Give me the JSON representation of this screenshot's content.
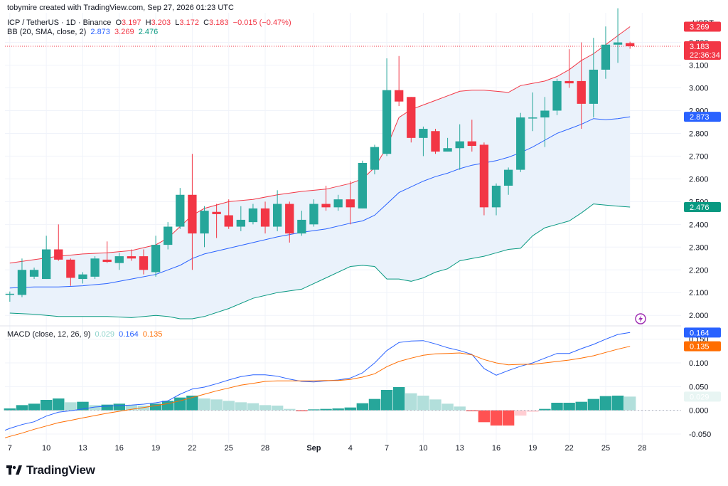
{
  "header": {
    "credit": "tobymire created with TradingView.com, Sep 27, 2026 01:23 UTC",
    "symbol": "ICP / TetherUS · 1D · Binance",
    "o_label": "O",
    "o_val": "3.197",
    "h_label": "H",
    "h_val": "3.203",
    "l_label": "L",
    "l_val": "3.172",
    "c_label": "C",
    "c_val": "3.183",
    "change": "−0.015 (−0.47%)",
    "bb_title": "BB (20, SMA, close, 2)",
    "bb_basis": "2.873",
    "bb_upper": "3.269",
    "bb_lower": "2.476",
    "macd_title": "MACD (close, 12, 26, 9)",
    "macd_hist": "0.029",
    "macd_line": "0.164",
    "macd_signal": "0.135"
  },
  "brand": {
    "name": "TradingView"
  },
  "colors": {
    "up": "#26a69a",
    "down": "#f23645",
    "basis": "#2962ff",
    "upper": "#f23645",
    "lower": "#089981",
    "band_fill": "#eaf2fb",
    "macd": "#2962ff",
    "signal": "#ff6d00",
    "hist_up_strong": "#26a69a",
    "hist_up_weak": "#b2dfdb",
    "hist_down_strong": "#ff5252",
    "hist_down_weak": "#ffcdd2",
    "grid": "#f0f3fa"
  },
  "chart_data": [
    {
      "type": "candlestick",
      "title": "ICP / TetherUS · 1D · Binance",
      "y_currency": "USDT",
      "ylim": [
        1.96,
        3.33
      ],
      "y_ticks": [
        "2.000",
        "2.100",
        "2.200",
        "2.300",
        "2.400",
        "2.500",
        "2.600",
        "2.700",
        "2.800",
        "2.900",
        "3.000",
        "3.100",
        "3.200"
      ],
      "x_ticks": [
        "7",
        "10",
        "13",
        "16",
        "19",
        "22",
        "25",
        "28",
        "Sep",
        "4",
        "7",
        "10",
        "13",
        "16",
        "19",
        "22",
        "25",
        "28"
      ],
      "x_tick_days": [
        7,
        10,
        13,
        16,
        19,
        22,
        25,
        28,
        32,
        35,
        38,
        41,
        44,
        47,
        50,
        53,
        56,
        59
      ],
      "day_range": [
        6.6,
        62.2
      ],
      "candles": [
        {
          "d": 7,
          "o": 2.095,
          "h": 2.105,
          "l": 2.06,
          "c": 2.095
        },
        {
          "d": 8,
          "o": 2.09,
          "h": 2.25,
          "l": 2.08,
          "c": 2.2
        },
        {
          "d": 9,
          "o": 2.17,
          "h": 2.21,
          "l": 2.16,
          "c": 2.2
        },
        {
          "d": 10,
          "o": 2.16,
          "h": 2.35,
          "l": 2.16,
          "c": 2.29
        },
        {
          "d": 11,
          "o": 2.29,
          "h": 2.4,
          "l": 2.24,
          "c": 2.245
        },
        {
          "d": 12,
          "o": 2.245,
          "h": 2.25,
          "l": 2.13,
          "c": 2.165
        },
        {
          "d": 13,
          "o": 2.16,
          "h": 2.19,
          "l": 2.14,
          "c": 2.18
        },
        {
          "d": 14,
          "o": 2.17,
          "h": 2.26,
          "l": 2.16,
          "c": 2.25
        },
        {
          "d": 15,
          "o": 2.245,
          "h": 2.325,
          "l": 2.23,
          "c": 2.235
        },
        {
          "d": 16,
          "o": 2.23,
          "h": 2.275,
          "l": 2.2,
          "c": 2.26
        },
        {
          "d": 17,
          "o": 2.26,
          "h": 2.29,
          "l": 2.24,
          "c": 2.25
        },
        {
          "d": 18,
          "o": 2.26,
          "h": 2.29,
          "l": 2.18,
          "c": 2.2
        },
        {
          "d": 19,
          "o": 2.19,
          "h": 2.35,
          "l": 2.17,
          "c": 2.31
        },
        {
          "d": 20,
          "o": 2.31,
          "h": 2.41,
          "l": 2.29,
          "c": 2.39
        },
        {
          "d": 21,
          "o": 2.39,
          "h": 2.56,
          "l": 2.38,
          "c": 2.53
        },
        {
          "d": 22,
          "o": 2.53,
          "h": 2.71,
          "l": 2.2,
          "c": 2.36
        },
        {
          "d": 23,
          "o": 2.36,
          "h": 2.48,
          "l": 2.3,
          "c": 2.46
        },
        {
          "d": 24,
          "o": 2.455,
          "h": 2.49,
          "l": 2.34,
          "c": 2.445
        },
        {
          "d": 25,
          "o": 2.44,
          "h": 2.51,
          "l": 2.38,
          "c": 2.39
        },
        {
          "d": 26,
          "o": 2.39,
          "h": 2.48,
          "l": 2.37,
          "c": 2.42
        },
        {
          "d": 27,
          "o": 2.41,
          "h": 2.49,
          "l": 2.4,
          "c": 2.47
        },
        {
          "d": 28,
          "o": 2.47,
          "h": 2.5,
          "l": 2.36,
          "c": 2.39
        },
        {
          "d": 29,
          "o": 2.39,
          "h": 2.55,
          "l": 2.37,
          "c": 2.49
        },
        {
          "d": 30,
          "o": 2.49,
          "h": 2.5,
          "l": 2.32,
          "c": 2.36
        },
        {
          "d": 31,
          "o": 2.36,
          "h": 2.46,
          "l": 2.35,
          "c": 2.42
        },
        {
          "d": 32,
          "o": 2.4,
          "h": 2.51,
          "l": 2.39,
          "c": 2.49
        },
        {
          "d": 33,
          "o": 2.49,
          "h": 2.57,
          "l": 2.46,
          "c": 2.475
        },
        {
          "d": 34,
          "o": 2.475,
          "h": 2.53,
          "l": 2.46,
          "c": 2.51
        },
        {
          "d": 35,
          "o": 2.51,
          "h": 2.59,
          "l": 2.4,
          "c": 2.475
        },
        {
          "d": 36,
          "o": 2.47,
          "h": 2.68,
          "l": 2.47,
          "c": 2.67
        },
        {
          "d": 37,
          "o": 2.64,
          "h": 2.75,
          "l": 2.62,
          "c": 2.74
        },
        {
          "d": 38,
          "o": 2.71,
          "h": 3.13,
          "l": 2.7,
          "c": 2.99
        },
        {
          "d": 39,
          "o": 2.99,
          "h": 3.14,
          "l": 2.92,
          "c": 2.94
        },
        {
          "d": 40,
          "o": 2.96,
          "h": 2.96,
          "l": 2.76,
          "c": 2.78
        },
        {
          "d": 41,
          "o": 2.78,
          "h": 2.83,
          "l": 2.7,
          "c": 2.82
        },
        {
          "d": 42,
          "o": 2.81,
          "h": 2.82,
          "l": 2.71,
          "c": 2.72
        },
        {
          "d": 43,
          "o": 2.72,
          "h": 2.78,
          "l": 2.72,
          "c": 2.735
        },
        {
          "d": 44,
          "o": 2.735,
          "h": 2.84,
          "l": 2.64,
          "c": 2.765
        },
        {
          "d": 45,
          "o": 2.765,
          "h": 2.86,
          "l": 2.72,
          "c": 2.745
        },
        {
          "d": 46,
          "o": 2.75,
          "h": 2.76,
          "l": 2.44,
          "c": 2.475
        },
        {
          "d": 47,
          "o": 2.475,
          "h": 2.58,
          "l": 2.44,
          "c": 2.57
        },
        {
          "d": 48,
          "o": 2.57,
          "h": 2.65,
          "l": 2.53,
          "c": 2.64
        },
        {
          "d": 49,
          "o": 2.64,
          "h": 2.89,
          "l": 2.63,
          "c": 2.87
        },
        {
          "d": 50,
          "o": 2.87,
          "h": 2.98,
          "l": 2.81,
          "c": 2.87
        },
        {
          "d": 51,
          "o": 2.87,
          "h": 2.96,
          "l": 2.74,
          "c": 2.9
        },
        {
          "d": 52,
          "o": 2.9,
          "h": 3.04,
          "l": 2.88,
          "c": 3.03
        },
        {
          "d": 53,
          "o": 3.03,
          "h": 3.17,
          "l": 3.0,
          "c": 3.02
        },
        {
          "d": 54,
          "o": 3.03,
          "h": 3.2,
          "l": 2.82,
          "c": 2.93
        },
        {
          "d": 55,
          "o": 2.93,
          "h": 3.22,
          "l": 2.87,
          "c": 3.08
        },
        {
          "d": 56,
          "o": 3.08,
          "h": 3.27,
          "l": 3.04,
          "c": 3.19
        },
        {
          "d": 57,
          "o": 3.19,
          "h": 3.35,
          "l": 3.11,
          "c": 3.2
        },
        {
          "d": 58,
          "o": 3.197,
          "h": 3.203,
          "l": 3.172,
          "c": 3.183
        }
      ],
      "bollinger": {
        "days": [
          7,
          9,
          11,
          13,
          15,
          17,
          19,
          20,
          21,
          22,
          23,
          25,
          27,
          29,
          31,
          33,
          35,
          36,
          37,
          38,
          39,
          40,
          41,
          42,
          43,
          44,
          45,
          46,
          47,
          48,
          49,
          50,
          51,
          52,
          53,
          54,
          55,
          56,
          57,
          58
        ],
        "upper": [
          2.23,
          2.245,
          2.26,
          2.27,
          2.275,
          2.285,
          2.31,
          2.34,
          2.39,
          2.44,
          2.47,
          2.5,
          2.51,
          2.53,
          2.545,
          2.555,
          2.58,
          2.6,
          2.65,
          2.74,
          2.87,
          2.905,
          2.925,
          2.945,
          2.965,
          2.985,
          2.99,
          2.99,
          2.985,
          2.98,
          3.01,
          3.02,
          3.03,
          3.05,
          3.08,
          3.12,
          3.15,
          3.19,
          3.23,
          3.269
        ],
        "basis": [
          2.12,
          2.125,
          2.125,
          2.13,
          2.14,
          2.16,
          2.18,
          2.2,
          2.22,
          2.25,
          2.27,
          2.295,
          2.32,
          2.345,
          2.365,
          2.38,
          2.405,
          2.415,
          2.44,
          2.49,
          2.54,
          2.565,
          2.59,
          2.61,
          2.625,
          2.645,
          2.66,
          2.67,
          2.68,
          2.695,
          2.715,
          2.74,
          2.77,
          2.8,
          2.82,
          2.84,
          2.865,
          2.86,
          2.865,
          2.873
        ],
        "lower": [
          2.01,
          2.005,
          1.995,
          1.995,
          1.995,
          1.99,
          2.0,
          1.995,
          1.985,
          1.985,
          1.995,
          2.03,
          2.075,
          2.1,
          2.115,
          2.165,
          2.215,
          2.22,
          2.215,
          2.16,
          2.16,
          2.15,
          2.165,
          2.19,
          2.205,
          2.24,
          2.25,
          2.26,
          2.275,
          2.29,
          2.295,
          2.35,
          2.385,
          2.4,
          2.415,
          2.45,
          2.49,
          2.485,
          2.48,
          2.476
        ]
      },
      "last_price": 3.183,
      "price_labels": {
        "upper": "3.269",
        "last": "3.183",
        "countdown": "22:36:34",
        "basis": "2.873",
        "lower": "2.476"
      }
    },
    {
      "type": "macd",
      "title": "MACD (close, 12, 26, 9)",
      "ylim": [
        -0.068,
        0.178
      ],
      "y_ticks": [
        "-0.050",
        "0.000",
        "0.050",
        "0.100",
        "0.150"
      ],
      "line_days": [
        6.6,
        7,
        8,
        9,
        10,
        11,
        12,
        13,
        14,
        15,
        16,
        17,
        18,
        19,
        20,
        21,
        22,
        23,
        24,
        25,
        26,
        27,
        28,
        29,
        30,
        31,
        32,
        33,
        34,
        35,
        36,
        37,
        38,
        39,
        40,
        41,
        42,
        43,
        44,
        45,
        46,
        47,
        48,
        49,
        50,
        51,
        52,
        53,
        54,
        55,
        56,
        57,
        58
      ],
      "macd": [
        -0.042,
        -0.038,
        -0.03,
        -0.024,
        -0.012,
        -0.004,
        -0.001,
        0.003,
        0.007,
        0.009,
        0.01,
        0.011,
        0.013,
        0.016,
        0.02,
        0.034,
        0.045,
        0.049,
        0.056,
        0.064,
        0.071,
        0.075,
        0.075,
        0.072,
        0.066,
        0.061,
        0.06,
        0.062,
        0.064,
        0.068,
        0.079,
        0.1,
        0.126,
        0.143,
        0.146,
        0.147,
        0.14,
        0.132,
        0.126,
        0.118,
        0.088,
        0.074,
        0.084,
        0.093,
        0.1,
        0.11,
        0.12,
        0.12,
        0.13,
        0.139,
        0.15,
        0.16,
        0.164
      ],
      "signal": [
        -0.058,
        -0.055,
        -0.048,
        -0.04,
        -0.033,
        -0.026,
        -0.021,
        -0.016,
        -0.011,
        -0.006,
        -0.002,
        0.002,
        0.006,
        0.01,
        0.014,
        0.02,
        0.027,
        0.034,
        0.041,
        0.047,
        0.053,
        0.057,
        0.061,
        0.062,
        0.062,
        0.062,
        0.062,
        0.063,
        0.063,
        0.065,
        0.07,
        0.077,
        0.092,
        0.103,
        0.11,
        0.116,
        0.119,
        0.12,
        0.121,
        0.117,
        0.107,
        0.1,
        0.096,
        0.097,
        0.097,
        0.1,
        0.103,
        0.106,
        0.11,
        0.115,
        0.122,
        0.129,
        0.135
      ],
      "hist_days": [
        7,
        8,
        9,
        10,
        11,
        12,
        13,
        14,
        15,
        16,
        17,
        18,
        19,
        20,
        21,
        22,
        23,
        24,
        25,
        26,
        27,
        28,
        29,
        30,
        31,
        32,
        33,
        34,
        35,
        36,
        37,
        38,
        39,
        40,
        41,
        42,
        43,
        44,
        45,
        46,
        47,
        48,
        49,
        50,
        51,
        52,
        53,
        54,
        55,
        56,
        57,
        58
      ],
      "histogram": [
        0.004,
        0.011,
        0.014,
        0.022,
        0.025,
        0.017,
        0.018,
        0.011,
        0.012,
        0.014,
        0.011,
        0.01,
        0.014,
        0.02,
        0.027,
        0.031,
        0.025,
        0.023,
        0.02,
        0.017,
        0.015,
        0.011,
        0.01,
        0.003,
        -0.002,
        0.002,
        0.003,
        0.004,
        0.006,
        0.015,
        0.024,
        0.043,
        0.049,
        0.036,
        0.031,
        0.023,
        0.014,
        0.008,
        -0.002,
        -0.025,
        -0.032,
        -0.032,
        -0.011,
        -0.003,
        0.003,
        0.016,
        0.016,
        0.018,
        0.024,
        0.03,
        0.031,
        0.029
      ]
    }
  ]
}
